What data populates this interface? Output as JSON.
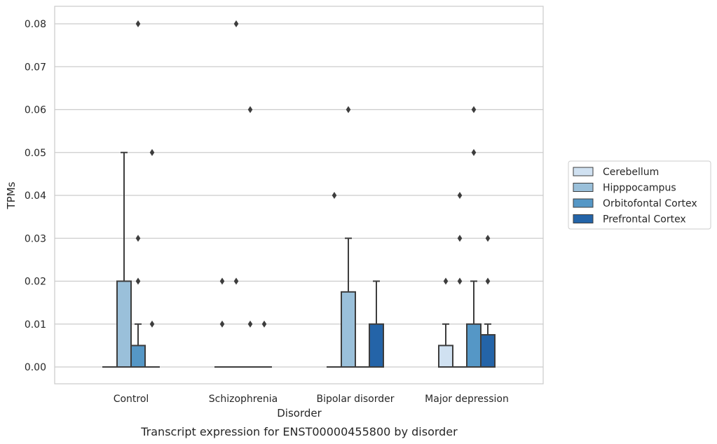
{
  "chart_data": {
    "type": "box",
    "categories": [
      "Control",
      "Schizophrenia",
      "Bipolar disorder",
      "Major depression"
    ],
    "xlabel": "Disorder",
    "ylabel": "TPMs",
    "caption": "Transcript expression for ENST00000455800 by disorder",
    "ylim": [
      -0.004,
      0.084
    ],
    "yticks": [
      "0.00",
      "0.01",
      "0.02",
      "0.03",
      "0.04",
      "0.05",
      "0.06",
      "0.07",
      "0.08"
    ],
    "grid": true,
    "legend_position": "right",
    "series": [
      {
        "name": "Cerebellum",
        "color": "#d0e1f1",
        "boxes": [
          {
            "q1": 0,
            "median": 0,
            "q3": 0,
            "whisker_low": 0,
            "whisker_high": 0,
            "outliers": []
          },
          {
            "q1": 0,
            "median": 0,
            "q3": 0,
            "whisker_low": 0,
            "whisker_high": 0,
            "outliers": [
              0.01,
              0.02
            ]
          },
          {
            "q1": 0,
            "median": 0,
            "q3": 0,
            "whisker_low": 0,
            "whisker_high": 0,
            "outliers": [
              0.04
            ]
          },
          {
            "q1": 0,
            "median": 0,
            "q3": 0.005,
            "whisker_low": 0,
            "whisker_high": 0.01,
            "outliers": [
              0.02
            ]
          }
        ]
      },
      {
        "name": "Hipppocampus",
        "color": "#9ac0da",
        "boxes": [
          {
            "q1": 0,
            "median": 0,
            "q3": 0.02,
            "whisker_low": 0,
            "whisker_high": 0.05,
            "outliers": []
          },
          {
            "q1": 0,
            "median": 0,
            "q3": 0,
            "whisker_low": 0,
            "whisker_high": 0,
            "outliers": [
              0.02,
              0.08
            ]
          },
          {
            "q1": 0,
            "median": 0,
            "q3": 0.0175,
            "whisker_low": 0,
            "whisker_high": 0.03,
            "outliers": [
              0.06
            ]
          },
          {
            "q1": 0,
            "median": 0,
            "q3": 0,
            "whisker_low": 0,
            "whisker_high": 0,
            "outliers": [
              0.02,
              0.03,
              0.04
            ]
          }
        ]
      },
      {
        "name": "Orbitofontal Cortex",
        "color": "#5597c6",
        "boxes": [
          {
            "q1": 0,
            "median": 0,
            "q3": 0.005,
            "whisker_low": 0,
            "whisker_high": 0.01,
            "outliers": [
              0.02,
              0.03,
              0.08
            ]
          },
          {
            "q1": 0,
            "median": 0,
            "q3": 0,
            "whisker_low": 0,
            "whisker_high": 0,
            "outliers": [
              0.01,
              0.06
            ]
          },
          {
            "q1": 0,
            "median": 0,
            "q3": 0,
            "whisker_low": 0,
            "whisker_high": 0,
            "outliers": []
          },
          {
            "q1": 0,
            "median": 0,
            "q3": 0.01,
            "whisker_low": 0,
            "whisker_high": 0.02,
            "outliers": [
              0.05,
              0.06
            ]
          }
        ]
      },
      {
        "name": "Prefrontal Cortex",
        "color": "#2464a8",
        "boxes": [
          {
            "q1": 0,
            "median": 0,
            "q3": 0,
            "whisker_low": 0,
            "whisker_high": 0,
            "outliers": [
              0.01,
              0.05
            ]
          },
          {
            "q1": 0,
            "median": 0,
            "q3": 0,
            "whisker_low": 0,
            "whisker_high": 0,
            "outliers": [
              0.01
            ]
          },
          {
            "q1": 0,
            "median": 0,
            "q3": 0.01,
            "whisker_low": 0,
            "whisker_high": 0.02,
            "outliers": []
          },
          {
            "q1": 0,
            "median": 0,
            "q3": 0.0075,
            "whisker_low": 0,
            "whisker_high": 0.01,
            "outliers": [
              0.02,
              0.03
            ]
          }
        ]
      }
    ]
  }
}
